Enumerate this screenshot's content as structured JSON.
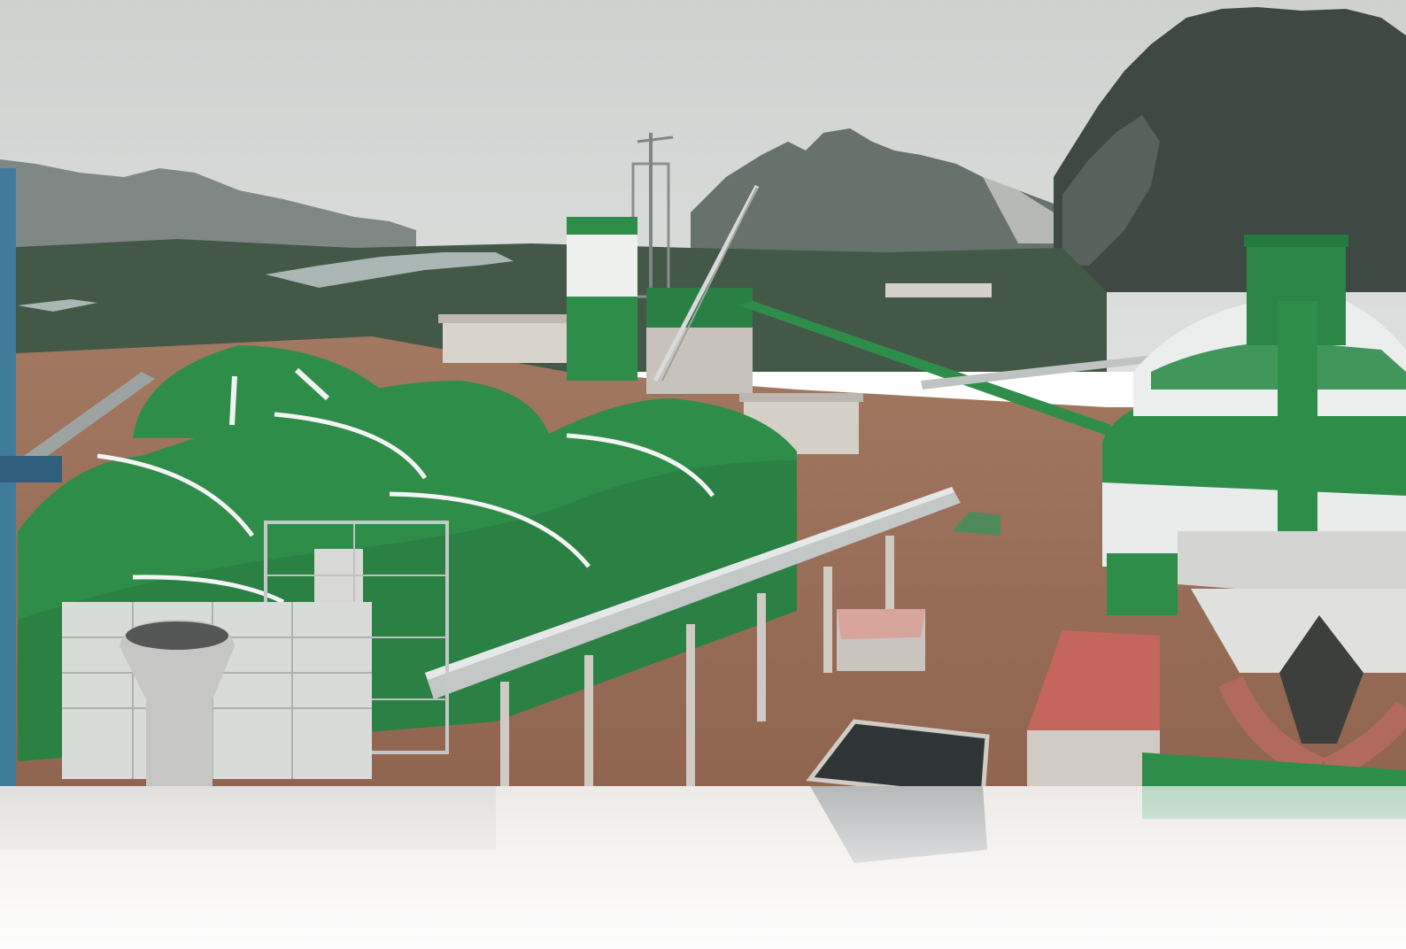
{
  "scene": {
    "palette": {
      "sky_top": "#c9ccca",
      "sky_bottom": "#dcdedc",
      "mountain_far": "#7d8582",
      "mountain_mid": "#5f6b65",
      "cliff_dark": "#3c4540",
      "vegetation": "#3e5140",
      "river": "#a9b6b3",
      "ground": "#9b6e58",
      "ground_dark": "#7c5a48",
      "shed_green": "#2f8d4a",
      "shed_green_dark": "#23733a",
      "silo_white": "#e8ebe8",
      "steel_grey": "#b8bcbb",
      "roof_red": "#c26c63",
      "reflection_fade": "#ffffff"
    },
    "icons": [
      "factory-scene-icon"
    ]
  }
}
